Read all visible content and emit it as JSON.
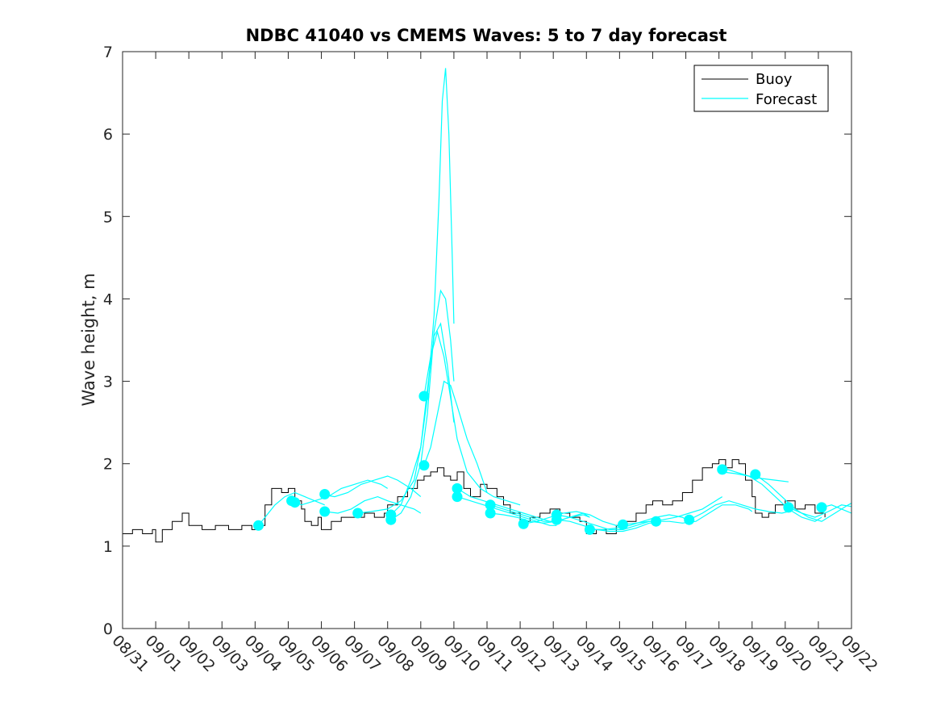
{
  "chart_data": {
    "type": "line",
    "title": "NDBC 41040 vs CMEMS Waves: 5 to 7 day forecast",
    "ylabel": "Wave height, m",
    "xlabel": "",
    "ylim": [
      0,
      7
    ],
    "xlim": [
      0,
      22
    ],
    "yticks": [
      0,
      1,
      2,
      3,
      4,
      5,
      6,
      7
    ],
    "xtick_labels": [
      "08/31",
      "09/01",
      "09/02",
      "09/03",
      "09/04",
      "09/05",
      "09/06",
      "09/07",
      "09/08",
      "09/09",
      "09/10",
      "09/11",
      "09/12",
      "09/13",
      "09/14",
      "09/15",
      "09/16",
      "09/17",
      "09/18",
      "09/19",
      "09/20",
      "09/21",
      "09/22"
    ],
    "legend": {
      "placement": "top-right",
      "entries": [
        "Buoy",
        "Forecast"
      ]
    },
    "colors": {
      "buoy": "#000000",
      "forecast": "#00ffff"
    },
    "series": [
      {
        "name": "Buoy",
        "step": true,
        "x": [
          0,
          0.3,
          0.6,
          0.9,
          1.0,
          1.2,
          1.5,
          1.8,
          2.0,
          2.4,
          2.8,
          3.2,
          3.6,
          3.9,
          4.0,
          4.3,
          4.5,
          4.8,
          5.0,
          5.2,
          5.4,
          5.5,
          5.7,
          5.9,
          6.0,
          6.3,
          6.6,
          7.0,
          7.3,
          7.6,
          7.9,
          8.0,
          8.3,
          8.6,
          8.9,
          9.1,
          9.3,
          9.5,
          9.7,
          9.9,
          10.1,
          10.3,
          10.5,
          10.8,
          11.0,
          11.3,
          11.5,
          11.7,
          12.0,
          12.3,
          12.6,
          12.9,
          13.2,
          13.5,
          13.8,
          14.0,
          14.3,
          14.6,
          14.9,
          15.2,
          15.5,
          15.8,
          16.0,
          16.3,
          16.6,
          16.9,
          17.2,
          17.5,
          17.8,
          18.0,
          18.2,
          18.4,
          18.6,
          18.8,
          19.0,
          19.1,
          19.3,
          19.5,
          19.7,
          20.0,
          20.3,
          20.6,
          20.9,
          21.2
        ],
        "y": [
          1.15,
          1.2,
          1.15,
          1.2,
          1.05,
          1.2,
          1.3,
          1.4,
          1.25,
          1.2,
          1.25,
          1.2,
          1.25,
          1.2,
          1.25,
          1.5,
          1.7,
          1.65,
          1.7,
          1.55,
          1.45,
          1.3,
          1.25,
          1.35,
          1.2,
          1.3,
          1.35,
          1.35,
          1.4,
          1.35,
          1.4,
          1.5,
          1.6,
          1.7,
          1.8,
          1.85,
          1.9,
          1.95,
          1.85,
          1.8,
          1.9,
          1.7,
          1.6,
          1.75,
          1.7,
          1.6,
          1.5,
          1.4,
          1.3,
          1.35,
          1.4,
          1.45,
          1.4,
          1.35,
          1.3,
          1.15,
          1.2,
          1.15,
          1.25,
          1.3,
          1.4,
          1.5,
          1.55,
          1.5,
          1.55,
          1.65,
          1.8,
          1.95,
          2.0,
          2.05,
          1.95,
          2.05,
          2.0,
          1.8,
          1.6,
          1.4,
          1.35,
          1.4,
          1.5,
          1.55,
          1.45,
          1.5,
          1.4,
          1.35
        ]
      },
      {
        "name": "Forecast",
        "segments": [
          {
            "x": [
              4.1,
              4.3,
              4.6,
              4.9,
              5.2,
              5.5,
              5.8,
              6.1
            ],
            "y": [
              1.25,
              1.35,
              1.5,
              1.6,
              1.65,
              1.6,
              1.55,
              1.5
            ]
          },
          {
            "x": [
              5.1,
              5.4,
              5.8,
              6.2,
              6.6,
              7.0,
              7.4,
              7.8,
              8.0
            ],
            "y": [
              1.55,
              1.5,
              1.55,
              1.6,
              1.7,
              1.75,
              1.8,
              1.75,
              1.7
            ]
          },
          {
            "x": [
              6.1,
              6.4,
              6.8,
              7.2,
              7.6,
              8.0,
              8.3,
              8.7,
              9.0
            ],
            "y": [
              1.62,
              1.6,
              1.65,
              1.75,
              1.8,
              1.85,
              1.8,
              1.7,
              1.6
            ]
          },
          {
            "x": [
              6.1,
              6.5,
              6.9,
              7.3,
              7.7,
              8.0,
              8.4,
              8.8,
              9.0
            ],
            "y": [
              1.42,
              1.4,
              1.45,
              1.55,
              1.6,
              1.55,
              1.5,
              1.45,
              1.4
            ]
          },
          {
            "x": [
              7.1,
              7.5,
              8.0,
              8.4,
              8.8,
              9.0,
              9.2,
              9.4,
              9.6,
              9.8,
              10.0
            ],
            "y": [
              1.4,
              1.42,
              1.45,
              1.55,
              1.8,
              2.2,
              2.9,
              3.55,
              3.7,
              3.2,
              2.5
            ]
          },
          {
            "x": [
              8.1,
              8.4,
              8.7,
              9.0,
              9.2,
              9.4,
              9.6,
              9.75,
              9.9,
              10.0
            ],
            "y": [
              1.32,
              1.4,
              1.6,
              2.0,
              2.6,
              3.6,
              4.1,
              4.0,
              3.5,
              3.0
            ]
          },
          {
            "x": [
              8.1,
              8.4,
              8.7,
              9.0,
              9.2,
              9.4,
              9.55,
              9.65,
              9.75,
              9.85,
              9.95,
              10.0
            ],
            "y": [
              1.38,
              1.5,
              1.8,
              2.2,
              2.8,
              3.8,
              5.2,
              6.4,
              6.8,
              6.0,
              4.5,
              3.7
            ]
          },
          {
            "x": [
              9.1,
              9.3,
              9.5,
              9.7,
              9.9,
              10.1,
              10.4,
              10.7,
              11.0
            ],
            "y": [
              1.98,
              2.2,
              2.6,
              3.0,
              2.95,
              2.7,
              2.3,
              2.0,
              1.65
            ]
          },
          {
            "x": [
              9.1,
              9.3,
              9.5,
              9.7,
              9.9,
              10.1,
              10.4,
              10.8,
              11.2,
              11.6,
              12.0
            ],
            "y": [
              2.82,
              3.3,
              3.6,
              3.3,
              2.8,
              2.3,
              1.9,
              1.7,
              1.6,
              1.55,
              1.5
            ]
          },
          {
            "x": [
              10.1,
              10.5,
              10.9,
              11.3,
              11.7,
              12.1,
              12.5,
              12.9,
              13.1
            ],
            "y": [
              1.7,
              1.6,
              1.55,
              1.5,
              1.45,
              1.4,
              1.35,
              1.3,
              1.3
            ]
          },
          {
            "x": [
              10.1,
              10.5,
              10.9,
              11.3,
              11.7,
              12.1,
              12.5,
              12.9,
              13.1
            ],
            "y": [
              1.6,
              1.55,
              1.5,
              1.45,
              1.4,
              1.35,
              1.3,
              1.25,
              1.25
            ]
          },
          {
            "x": [
              11.1,
              11.5,
              11.9,
              12.3,
              12.7,
              13.1,
              13.5,
              13.9,
              14.1
            ],
            "y": [
              1.5,
              1.45,
              1.4,
              1.35,
              1.3,
              1.3,
              1.35,
              1.4,
              1.35
            ]
          },
          {
            "x": [
              11.1,
              11.5,
              11.9,
              12.3,
              12.7,
              13.1,
              13.5,
              13.9,
              14.1
            ],
            "y": [
              1.4,
              1.38,
              1.35,
              1.3,
              1.28,
              1.3,
              1.35,
              1.38,
              1.35
            ]
          },
          {
            "x": [
              12.1,
              12.5,
              12.9,
              13.3,
              13.7,
              14.1,
              14.5,
              14.9,
              15.1
            ],
            "y": [
              1.27,
              1.3,
              1.35,
              1.4,
              1.42,
              1.38,
              1.3,
              1.25,
              1.22
            ]
          },
          {
            "x": [
              13.1,
              13.5,
              13.9,
              14.3,
              14.7,
              15.1,
              15.5,
              15.9,
              16.1
            ],
            "y": [
              1.38,
              1.35,
              1.3,
              1.25,
              1.2,
              1.2,
              1.25,
              1.3,
              1.3
            ]
          },
          {
            "x": [
              13.1,
              13.5,
              13.9,
              14.3,
              14.7,
              15.1,
              15.5,
              15.9,
              16.1
            ],
            "y": [
              1.32,
              1.3,
              1.25,
              1.2,
              1.18,
              1.18,
              1.22,
              1.28,
              1.28
            ]
          },
          {
            "x": [
              14.1,
              14.5,
              14.9,
              15.3,
              15.7,
              16.1,
              16.5,
              16.9,
              17.1
            ],
            "y": [
              1.2,
              1.2,
              1.22,
              1.25,
              1.3,
              1.35,
              1.38,
              1.35,
              1.3
            ]
          },
          {
            "x": [
              15.1,
              15.5,
              15.9,
              16.3,
              16.7,
              17.1,
              17.5,
              17.9,
              18.1
            ],
            "y": [
              1.26,
              1.28,
              1.3,
              1.32,
              1.35,
              1.4,
              1.45,
              1.55,
              1.6
            ]
          },
          {
            "x": [
              16.1,
              16.5,
              16.9,
              17.3,
              17.7,
              18.1,
              18.5,
              18.9,
              19.0
            ],
            "y": [
              1.3,
              1.3,
              1.28,
              1.3,
              1.4,
              1.5,
              1.5,
              1.45,
              1.42
            ]
          },
          {
            "x": [
              17.1,
              17.5,
              17.9,
              18.3,
              18.7,
              19.1,
              19.5,
              19.9,
              20.1
            ],
            "y": [
              1.32,
              1.4,
              1.5,
              1.55,
              1.5,
              1.45,
              1.42,
              1.4,
              1.42
            ]
          },
          {
            "x": [
              18.1,
              18.5,
              18.9,
              19.3,
              19.7,
              20.1
            ],
            "y": [
              1.95,
              1.9,
              1.85,
              1.82,
              1.8,
              1.78
            ]
          },
          {
            "x": [
              18.1,
              18.5,
              18.9,
              19.3,
              19.7,
              20.1,
              20.5,
              20.9,
              21.1
            ],
            "y": [
              1.9,
              1.88,
              1.85,
              1.75,
              1.6,
              1.45,
              1.35,
              1.3,
              1.35
            ]
          },
          {
            "x": [
              19.1,
              19.5,
              19.9,
              20.3,
              20.7,
              21.1,
              21.5,
              21.9,
              22.0
            ],
            "y": [
              1.87,
              1.75,
              1.6,
              1.45,
              1.35,
              1.3,
              1.4,
              1.5,
              1.52
            ]
          },
          {
            "x": [
              20.1,
              20.5,
              20.9,
              21.3,
              21.7,
              22.0
            ],
            "y": [
              1.47,
              1.4,
              1.35,
              1.42,
              1.5,
              1.48
            ]
          },
          {
            "x": [
              21.1,
              21.4,
              21.7,
              22.0
            ],
            "y": [
              1.47,
              1.5,
              1.45,
              1.4
            ]
          }
        ]
      }
    ],
    "markers": {
      "x": [
        4.1,
        5.1,
        5.2,
        6.1,
        6.1,
        7.1,
        8.1,
        8.1,
        9.1,
        9.1,
        10.1,
        10.1,
        11.1,
        11.1,
        12.1,
        13.1,
        13.1,
        14.1,
        15.1,
        16.1,
        17.1,
        18.1,
        19.1,
        20.1,
        21.1
      ],
      "y": [
        1.25,
        1.55,
        1.53,
        1.63,
        1.42,
        1.4,
        1.38,
        1.32,
        2.82,
        1.98,
        1.7,
        1.6,
        1.5,
        1.4,
        1.27,
        1.38,
        1.32,
        1.2,
        1.26,
        1.3,
        1.32,
        1.93,
        1.87,
        1.47,
        1.47
      ]
    }
  }
}
